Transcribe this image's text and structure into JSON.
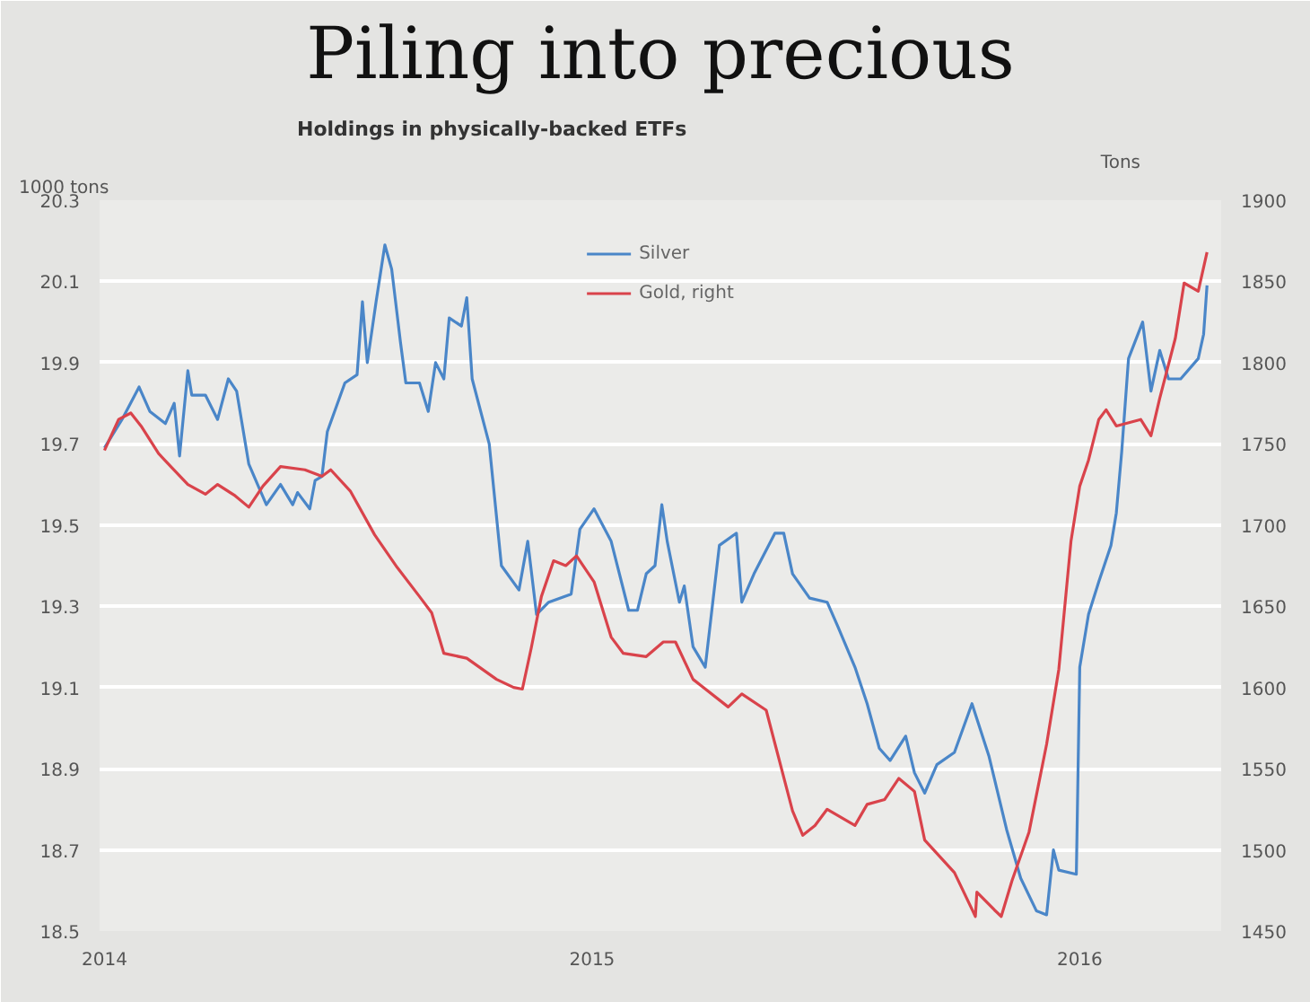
{
  "chart_data": {
    "type": "line",
    "title": "Piling into precious",
    "subtitle": "Holdings in physically-backed ETFs",
    "ylabel": "1000 tons",
    "y2label": "Tons",
    "xlim": [
      2013.99,
      2016.29
    ],
    "xticks": [
      2014,
      2015,
      2016
    ],
    "ylim": [
      18.5,
      20.3
    ],
    "yticks": [
      18.5,
      18.7,
      18.9,
      19.1,
      19.3,
      19.5,
      19.7,
      19.9,
      20.1,
      20.3
    ],
    "y2lim": [
      1450,
      1900
    ],
    "y2ticks": [
      1450,
      1500,
      1550,
      1600,
      1650,
      1700,
      1750,
      1800,
      1850,
      1900
    ],
    "grid": "y",
    "legend": "top",
    "series": [
      {
        "name": "Silver",
        "color": "#4a86c8",
        "x": [
          2014.0,
          2014.036,
          2014.071,
          2014.093,
          2014.125,
          2014.143,
          2014.154,
          2014.171,
          2014.179,
          2014.207,
          2014.232,
          2014.254,
          2014.271,
          2014.296,
          2014.314,
          2014.332,
          2014.361,
          2014.386,
          2014.396,
          2014.421,
          2014.432,
          2014.446,
          2014.457,
          2014.493,
          2014.518,
          2014.529,
          2014.539,
          2014.557,
          2014.575,
          2014.589,
          2014.607,
          2014.618,
          2014.646,
          2014.664,
          2014.679,
          2014.696,
          2014.707,
          2014.732,
          2014.743,
          2014.754,
          2014.789,
          2014.814,
          2014.85,
          2014.868,
          2014.886,
          2014.911,
          2014.957,
          2014.975,
          2015.004,
          2015.039,
          2015.075,
          2015.093,
          2015.111,
          2015.129,
          2015.143,
          2015.154,
          2015.179,
          2015.189,
          2015.207,
          2015.232,
          2015.261,
          2015.296,
          2015.307,
          2015.332,
          2015.375,
          2015.393,
          2015.411,
          2015.446,
          2015.482,
          2015.504,
          2015.539,
          2015.564,
          2015.589,
          2015.611,
          2015.643,
          2015.661,
          2015.682,
          2015.707,
          2015.743,
          2015.779,
          2015.814,
          2015.85,
          2015.879,
          2015.911,
          2015.932,
          2015.946,
          2015.957,
          2015.993,
          2016.0,
          2016.018,
          2016.039,
          2016.064,
          2016.075,
          2016.086,
          2016.1,
          2016.129,
          2016.146,
          2016.164,
          2016.182,
          2016.207,
          2016.243,
          2016.254,
          2016.261
        ],
        "values": [
          19.69,
          19.76,
          19.84,
          19.78,
          19.75,
          19.8,
          19.67,
          19.88,
          19.82,
          19.82,
          19.76,
          19.86,
          19.83,
          19.65,
          19.6,
          19.55,
          19.6,
          19.55,
          19.58,
          19.54,
          19.61,
          19.62,
          19.73,
          19.85,
          19.87,
          20.05,
          19.9,
          20.05,
          20.19,
          20.13,
          19.95,
          19.85,
          19.85,
          19.78,
          19.9,
          19.86,
          20.01,
          19.99,
          20.06,
          19.86,
          19.7,
          19.4,
          19.34,
          19.46,
          19.28,
          19.31,
          19.33,
          19.49,
          19.54,
          19.46,
          19.29,
          19.29,
          19.38,
          19.4,
          19.55,
          19.46,
          19.31,
          19.35,
          19.2,
          19.15,
          19.45,
          19.48,
          19.31,
          19.38,
          19.48,
          19.48,
          19.38,
          19.32,
          19.31,
          19.25,
          19.15,
          19.06,
          18.95,
          18.92,
          18.98,
          18.89,
          18.84,
          18.91,
          18.94,
          19.06,
          18.93,
          18.75,
          18.63,
          18.55,
          18.54,
          18.7,
          18.65,
          18.64,
          19.15,
          19.28,
          19.36,
          19.45,
          19.53,
          19.68,
          19.91,
          20.0,
          19.83,
          19.93,
          19.86,
          19.86,
          19.91,
          19.97,
          20.09
        ]
      },
      {
        "name": "Gold, right",
        "color": "#d9434b",
        "axis": "y2",
        "x": [
          2014.0,
          2014.029,
          2014.054,
          2014.075,
          2014.111,
          2014.136,
          2014.171,
          2014.207,
          2014.232,
          2014.268,
          2014.296,
          2014.325,
          2014.361,
          2014.411,
          2014.446,
          2014.464,
          2014.504,
          2014.554,
          2014.6,
          2014.646,
          2014.671,
          2014.696,
          2014.743,
          2014.804,
          2014.839,
          2014.857,
          2014.875,
          2014.896,
          2014.921,
          2014.946,
          2014.968,
          2015.004,
          2015.039,
          2015.064,
          2015.111,
          2015.146,
          2015.171,
          2015.207,
          2015.279,
          2015.307,
          2015.357,
          2015.411,
          2015.432,
          2015.457,
          2015.482,
          2015.539,
          2015.564,
          2015.6,
          2015.629,
          2015.661,
          2015.682,
          2015.743,
          2015.786,
          2015.789,
          2015.825,
          2015.839,
          2015.861,
          2015.896,
          2015.932,
          2015.957,
          2015.982,
          2016.0,
          2016.018,
          2016.039,
          2016.054,
          2016.075,
          2016.125,
          2016.146,
          2016.164,
          2016.196,
          2016.214,
          2016.243,
          2016.261
        ],
        "values": [
          1746,
          1765,
          1769,
          1761,
          1744,
          1736,
          1725,
          1719,
          1725,
          1718,
          1711,
          1724,
          1736,
          1734,
          1730,
          1734,
          1721,
          1694,
          1674,
          1656,
          1646,
          1621,
          1618,
          1605,
          1600,
          1599,
          1624,
          1656,
          1678,
          1675,
          1681,
          1665,
          1631,
          1621,
          1619,
          1628,
          1628,
          1605,
          1588,
          1596,
          1586,
          1524,
          1509,
          1515,
          1525,
          1515,
          1528,
          1531,
          1544,
          1536,
          1506,
          1486,
          1459,
          1474,
          1463,
          1459,
          1481,
          1511,
          1565,
          1611,
          1690,
          1724,
          1740,
          1765,
          1771,
          1761,
          1765,
          1755,
          1778,
          1815,
          1849,
          1844,
          1868
        ]
      }
    ]
  }
}
